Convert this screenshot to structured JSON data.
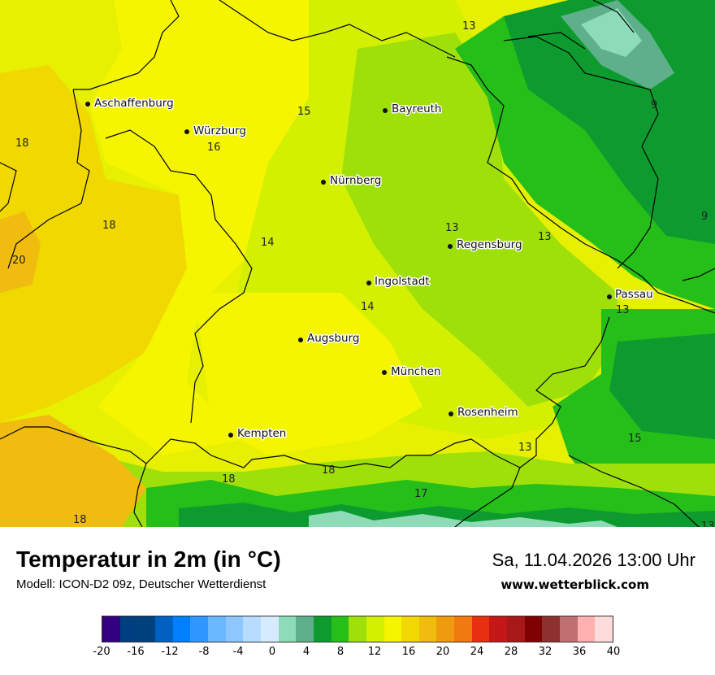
{
  "map": {
    "cities": [
      {
        "name": "Aschaffenburg"
      },
      {
        "name": "Würzburg"
      },
      {
        "name": "Bayreuth"
      },
      {
        "name": "Nürnberg"
      },
      {
        "name": "Regensburg"
      },
      {
        "name": "Ingolstadt"
      },
      {
        "name": "Passau"
      },
      {
        "name": "Augsburg"
      },
      {
        "name": "München"
      },
      {
        "name": "Rosenheim"
      },
      {
        "name": "Kempten"
      }
    ],
    "values": [
      "13",
      "9",
      "15",
      "16",
      "18",
      "18",
      "14",
      "20",
      "13",
      "13",
      "9",
      "14",
      "13",
      "15",
      "13",
      "18",
      "18",
      "17",
      "18",
      "13"
    ]
  },
  "footer": {
    "title": "Temperatur in 2m (in °C)",
    "model": "Modell: ICON-D2 09z, Deutscher Wetterdienst",
    "datetime": "Sa, 11.04.2026 13:00 Uhr",
    "website": "www.wetterblick.com"
  },
  "legend": {
    "colors": [
      "#33007f",
      "#003f7f",
      "#00427d",
      "#0061c2",
      "#0080ff",
      "#2f97ff",
      "#6ab8ff",
      "#8ec7ff",
      "#b8dcff",
      "#d6ebff",
      "#8edcb7",
      "#5eb08a",
      "#0d9b2f",
      "#26be19",
      "#a0e00a",
      "#d2f000",
      "#f5f500",
      "#f0d800",
      "#f0bc10",
      "#f09a10",
      "#f07a10",
      "#e63010",
      "#c41818",
      "#a81818",
      "#7f0000",
      "#8c3030",
      "#c07070",
      "#ffb0b0",
      "#ffdcdc"
    ],
    "ticks": [
      "-20",
      "-16",
      "-12",
      "-8",
      "-4",
      "0",
      "4",
      "8",
      "12",
      "16",
      "20",
      "24",
      "28",
      "32",
      "36",
      "40"
    ]
  }
}
